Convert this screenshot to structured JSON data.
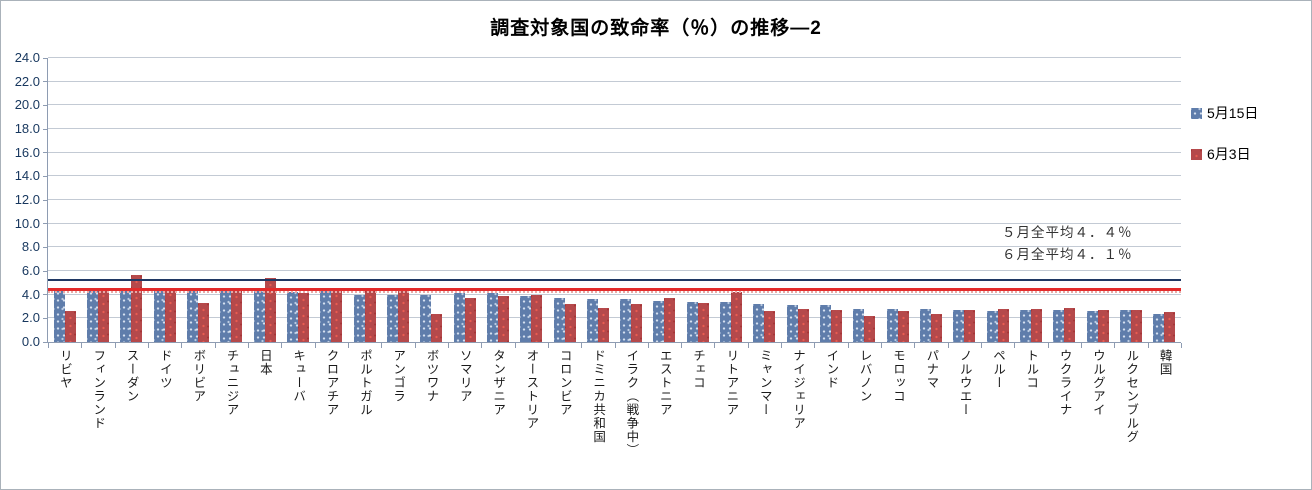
{
  "title": "調査対象国の致命率（％）の推移―2",
  "legend": [
    {
      "label": "5月15日",
      "color": "#5f7dab"
    },
    {
      "label": "6月3日",
      "color": "#b5494b"
    }
  ],
  "annotations": [
    "５月全平均４．４％",
    "６月全平均４．１％"
  ],
  "chart_data": {
    "type": "bar",
    "title": "調査対象国の致命率（％）の推移―2",
    "xlabel": "",
    "ylabel": "",
    "ylim": [
      0,
      24
    ],
    "ytick_step": 2,
    "ytick_format": "one-decimal",
    "grid": true,
    "legend_position": "right",
    "categories": [
      "リビヤ",
      "フィンランド",
      "スーダン",
      "ドイツ",
      "ボリビア",
      "チュニジア",
      "日本",
      "キューバ",
      "クロアチア",
      "ポルトガル",
      "アンゴラ",
      "ボツワナ",
      "ソマリア",
      "タンザニア",
      "オーストリア",
      "コロンビア",
      "ドミニカ共和国",
      "イラク（戦争中）",
      "エストニア",
      "チェコ",
      "リトアニア",
      "ミャンマー",
      "ナイジェリア",
      "インド",
      "レバノン",
      "モロッコ",
      "パナマ",
      "ノルウエー",
      "ペルー",
      "トルコ",
      "ウクライナ",
      "ウルグアイ",
      "ルクセンブルグ",
      "韓国"
    ],
    "series": [
      {
        "name": "5月15日",
        "color": "#5f7dab",
        "values": [
          4.6,
          4.6,
          4.6,
          4.5,
          4.5,
          4.3,
          4.4,
          4.2,
          4.3,
          4.0,
          4.0,
          4.0,
          4.1,
          4.1,
          3.9,
          3.7,
          3.6,
          3.6,
          3.5,
          3.4,
          3.4,
          3.2,
          3.1,
          3.1,
          2.8,
          2.8,
          2.8,
          2.7,
          2.6,
          2.7,
          2.7,
          2.6,
          2.7,
          2.4
        ]
      },
      {
        "name": "6月3日",
        "color": "#b5494b",
        "values": [
          2.6,
          4.5,
          5.7,
          4.6,
          3.3,
          4.4,
          5.4,
          4.1,
          4.5,
          4.4,
          4.6,
          2.4,
          3.7,
          3.9,
          4.0,
          3.2,
          2.9,
          3.2,
          3.7,
          3.3,
          4.2,
          2.6,
          2.8,
          2.7,
          2.2,
          2.6,
          2.4,
          2.7,
          2.8,
          2.8,
          2.9,
          2.7,
          2.7,
          2.5
        ]
      }
    ],
    "ref_lines": [
      {
        "value": 5.2,
        "color": "#1f3864",
        "style": "solid",
        "label": ""
      },
      {
        "value": 4.4,
        "color": "#e32b2b",
        "style": "solid",
        "label": "５月全平均４．４％"
      },
      {
        "value": 4.1,
        "color": "#e8aaa8",
        "style": "dotted",
        "label": "６月全平均４．１％"
      }
    ]
  }
}
